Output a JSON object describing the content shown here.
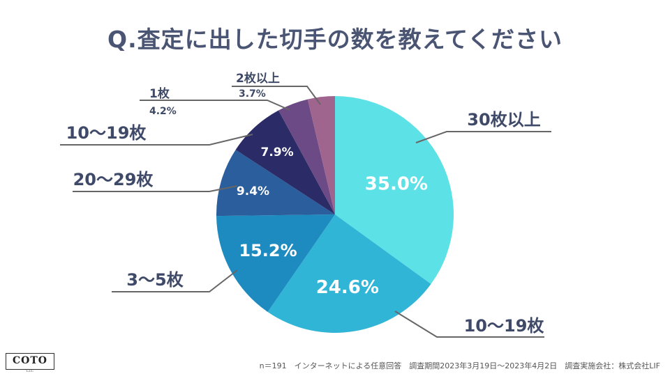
{
  "title": "Q.査定に出した切手の数を教えてください",
  "footnote": "n＝191　インターネットによる任意回答　調査期間2023年3月19日～2023年4月2日　調査実施会社：株式会社LIF",
  "logo": {
    "text": "COTO",
    "sub": "LLC"
  },
  "colors": {
    "title": "#4a5473",
    "leader_line": "#666666",
    "slice_colors": [
      "#5ce1e6",
      "#30b5d6",
      "#1d8bbf",
      "#2a5e9c",
      "#2b2c67",
      "#6b4a85",
      "#a0658f"
    ]
  },
  "chart_data": {
    "type": "pie",
    "title": "Q.査定に出した切手の数を教えてください",
    "start": "12 o'clock",
    "direction": "clockwise",
    "slices": [
      {
        "label": "30枚以上",
        "value": 35.0,
        "value_label": "35.0%"
      },
      {
        "label": "10～19枚",
        "value": 24.6,
        "value_label": "24.6%"
      },
      {
        "label": "3～5枚",
        "value": 15.2,
        "value_label": "15.2%"
      },
      {
        "label": "20～29枚",
        "value": 9.4,
        "value_label": "9.4%"
      },
      {
        "label": "10～19枚",
        "value": 7.9,
        "value_label": "7.9%"
      },
      {
        "label": "1枚",
        "value": 4.2,
        "value_label": "4.2%"
      },
      {
        "label": "2枚以上",
        "value": 3.7,
        "value_label": "3.7%"
      }
    ]
  }
}
